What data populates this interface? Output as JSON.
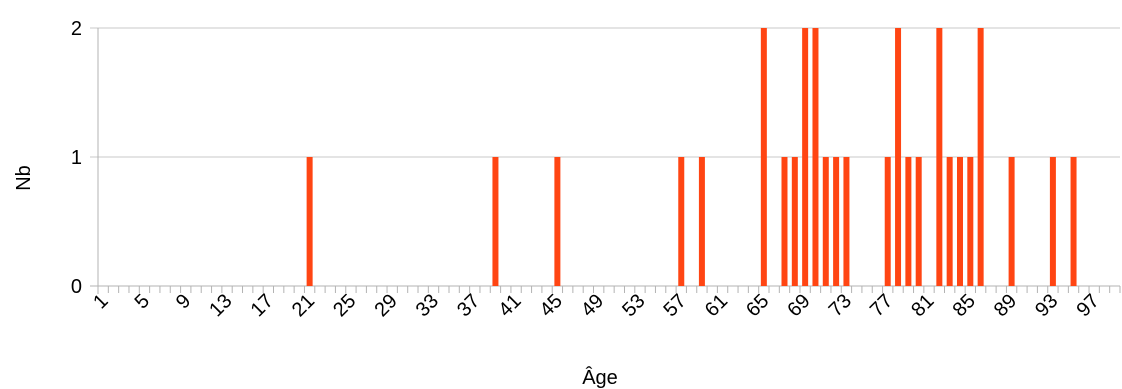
{
  "chart_data": {
    "type": "bar",
    "xlabel": "Âge",
    "ylabel": "Nb",
    "ylim": [
      0,
      2
    ],
    "yticks": [
      "0",
      "1",
      "2"
    ],
    "x_start": 1,
    "x_end": 99,
    "x_tick_labels": [
      "1",
      "5",
      "9",
      "13",
      "17",
      "21",
      "25",
      "29",
      "33",
      "37",
      "41",
      "45",
      "49",
      "53",
      "57",
      "61",
      "65",
      "69",
      "73",
      "77",
      "81",
      "85",
      "89",
      "93",
      "97"
    ],
    "bar_color": "#ff4513",
    "grid": true,
    "legend": "none",
    "points": [
      {
        "age": 21,
        "value": 1
      },
      {
        "age": 39,
        "value": 1
      },
      {
        "age": 45,
        "value": 1
      },
      {
        "age": 57,
        "value": 1
      },
      {
        "age": 59,
        "value": 1
      },
      {
        "age": 65,
        "value": 2
      },
      {
        "age": 67,
        "value": 1
      },
      {
        "age": 68,
        "value": 1
      },
      {
        "age": 69,
        "value": 2
      },
      {
        "age": 70,
        "value": 2
      },
      {
        "age": 71,
        "value": 1
      },
      {
        "age": 72,
        "value": 1
      },
      {
        "age": 73,
        "value": 1
      },
      {
        "age": 77,
        "value": 1
      },
      {
        "age": 78,
        "value": 2
      },
      {
        "age": 79,
        "value": 1
      },
      {
        "age": 80,
        "value": 1
      },
      {
        "age": 82,
        "value": 2
      },
      {
        "age": 83,
        "value": 1
      },
      {
        "age": 84,
        "value": 1
      },
      {
        "age": 85,
        "value": 1
      },
      {
        "age": 86,
        "value": 2
      },
      {
        "age": 89,
        "value": 1
      },
      {
        "age": 93,
        "value": 1
      },
      {
        "age": 95,
        "value": 1
      }
    ]
  }
}
